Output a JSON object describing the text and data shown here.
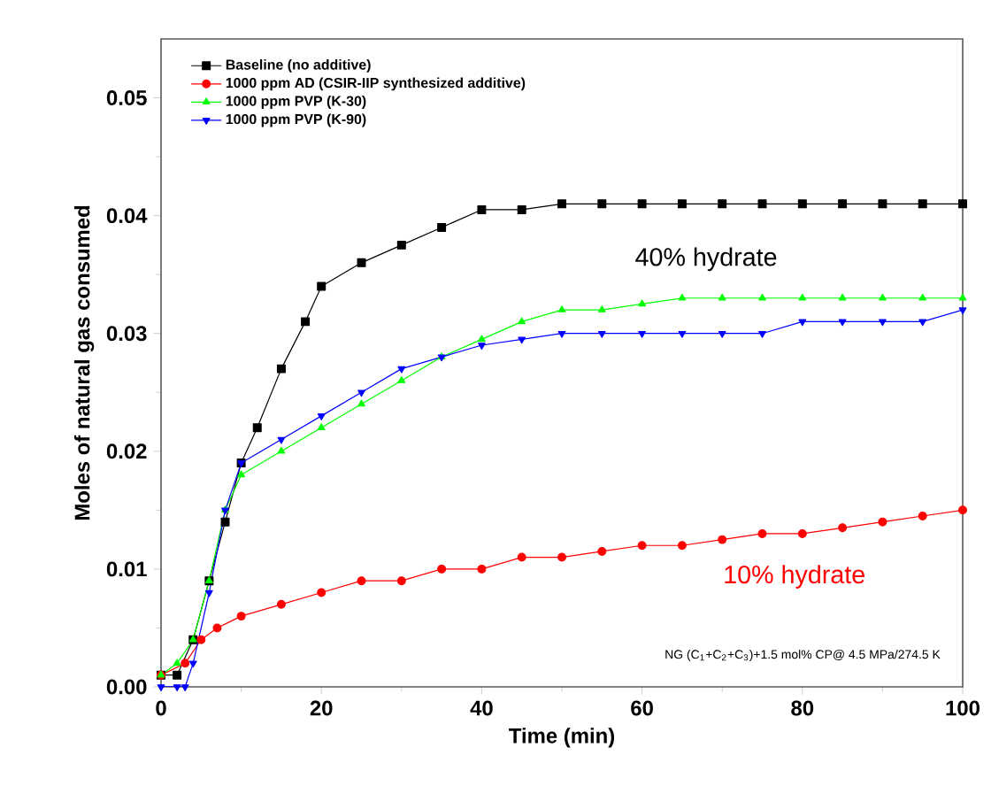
{
  "chart_data": {
    "type": "line",
    "xlabel": "Time (min)",
    "ylabel": "Moles of natural gas consumed",
    "xlim": [
      0,
      100
    ],
    "ylim": [
      0,
      0.055
    ],
    "xticks": [
      0,
      20,
      40,
      60,
      80,
      100
    ],
    "yticks": [
      {
        "value": 0,
        "label": "0.00"
      },
      {
        "value": 0.01,
        "label": "0.01"
      },
      {
        "value": 0.02,
        "label": "0.02"
      },
      {
        "value": 0.03,
        "label": "0.03"
      },
      {
        "value": 0.04,
        "label": "0.04"
      },
      {
        "value": 0.05,
        "label": "0.05"
      }
    ],
    "legend": "top left",
    "grid": false,
    "line_style": "solid",
    "series": [
      {
        "name": "Baseline (no additive)",
        "color": "#000000",
        "marker": "square",
        "x": [
          0,
          2,
          4,
          6,
          8,
          10,
          12,
          15,
          18,
          20,
          25,
          30,
          35,
          40,
          45,
          50,
          55,
          60,
          65,
          70,
          75,
          80,
          85,
          90,
          95,
          100
        ],
        "values": [
          0.001,
          0.001,
          0.004,
          0.009,
          0.014,
          0.019,
          0.022,
          0.027,
          0.031,
          0.034,
          0.036,
          0.0375,
          0.039,
          0.0405,
          0.0405,
          0.041,
          0.041,
          0.041,
          0.041,
          0.041,
          0.041,
          0.041,
          0.041,
          0.041,
          0.041,
          0.041
        ]
      },
      {
        "name": "1000 ppm AD (CSIR-IIP synthesized additive)",
        "color": "#ff0000",
        "marker": "circle",
        "x": [
          0,
          3,
          5,
          7,
          10,
          15,
          20,
          25,
          30,
          35,
          40,
          45,
          50,
          55,
          60,
          65,
          70,
          75,
          80,
          85,
          90,
          95,
          100
        ],
        "values": [
          0.001,
          0.002,
          0.004,
          0.005,
          0.006,
          0.007,
          0.008,
          0.009,
          0.009,
          0.01,
          0.01,
          0.011,
          0.011,
          0.0115,
          0.012,
          0.012,
          0.0125,
          0.013,
          0.013,
          0.0135,
          0.014,
          0.0145,
          0.015
        ]
      },
      {
        "name": "1000 ppm PVP (K-30)",
        "color": "#00ff00",
        "marker": "triangle",
        "x": [
          0,
          2,
          4,
          6,
          8,
          10,
          15,
          20,
          25,
          30,
          35,
          40,
          45,
          50,
          55,
          60,
          65,
          70,
          75,
          80,
          85,
          90,
          95,
          100
        ],
        "values": [
          0.001,
          0.002,
          0.004,
          0.009,
          0.015,
          0.018,
          0.02,
          0.022,
          0.024,
          0.026,
          0.028,
          0.0295,
          0.031,
          0.032,
          0.032,
          0.0325,
          0.033,
          0.033,
          0.033,
          0.033,
          0.033,
          0.033,
          0.033,
          0.033
        ]
      },
      {
        "name": "1000 ppm PVP (K-90)",
        "color": "#0000ff",
        "marker": "triangle down",
        "x": [
          0,
          2,
          3,
          4,
          6,
          8,
          10,
          15,
          20,
          25,
          30,
          35,
          40,
          45,
          50,
          55,
          60,
          65,
          70,
          75,
          80,
          85,
          90,
          95,
          100
        ],
        "values": [
          0.0,
          0.0,
          0.0,
          0.002,
          0.008,
          0.015,
          0.019,
          0.021,
          0.023,
          0.025,
          0.027,
          0.028,
          0.029,
          0.0295,
          0.03,
          0.03,
          0.03,
          0.03,
          0.03,
          0.03,
          0.031,
          0.031,
          0.031,
          0.031,
          0.032
        ]
      }
    ],
    "annotations": [
      "40% hydrate",
      "10% hydrate",
      "NG (C$_{1}$+C$_{2}$+C$_{3}$)+1.5 mol% CP@ 4.5 MPa/274.5 K"
    ]
  }
}
